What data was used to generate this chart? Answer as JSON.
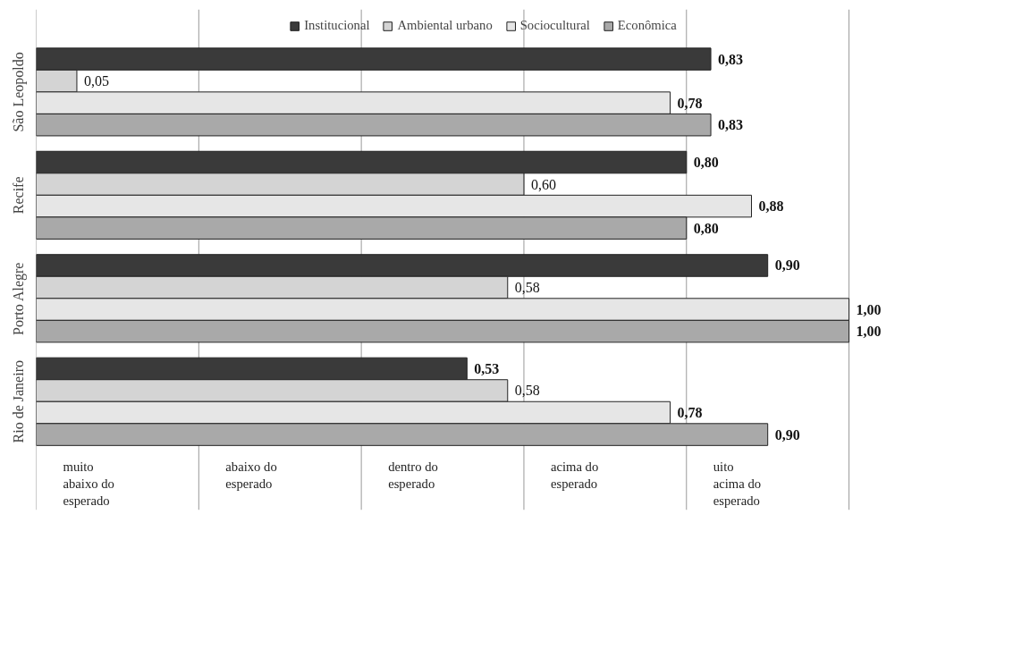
{
  "chart_data": {
    "type": "bar",
    "orientation": "horizontal",
    "categories": [
      "São Leopoldo",
      "Recife",
      "Porto Alegre",
      "Rio de Janeiro"
    ],
    "series": [
      {
        "name": "Institucional",
        "color": "#3a3a3a",
        "values": [
          0.83,
          0.8,
          0.9,
          0.53
        ],
        "value_labels": [
          "0,83",
          "0,80",
          "0,90",
          "0,53"
        ]
      },
      {
        "name": "Ambiental urbano",
        "color": "#d4d4d4",
        "values": [
          0.05,
          0.6,
          0.58,
          0.58
        ],
        "value_labels": [
          "0,05",
          "0,60",
          "0,58",
          "0,58"
        ]
      },
      {
        "name": "Sociocultural",
        "color": "#e6e6e6",
        "values": [
          0.78,
          0.88,
          1.0,
          0.78
        ],
        "value_labels": [
          "0,78",
          "0,88",
          "1,00",
          "0,78"
        ]
      },
      {
        "name": "Econômica",
        "color": "#a9a9a9",
        "values": [
          0.83,
          0.8,
          1.0,
          0.9
        ],
        "value_labels": [
          "0,83",
          "0,80",
          "1,00",
          "0,90"
        ]
      }
    ],
    "ref_lines": [
      {
        "axis": "x",
        "value": 0,
        "label": "muito\nabaixo do\nesperado"
      },
      {
        "axis": "x",
        "value": 0.2,
        "label": "abaixo do\nesperado"
      },
      {
        "axis": "x",
        "value": 0.4,
        "label": "dentro do\nesperado"
      },
      {
        "axis": "x",
        "value": 0.6,
        "label": "acima do\nesperado"
      },
      {
        "axis": "x",
        "value": 0.8,
        "label": "uito\nacima do\nesperado"
      },
      {
        "axis": "x",
        "value": 1.0,
        "label": null
      }
    ],
    "legend": "top"
  }
}
